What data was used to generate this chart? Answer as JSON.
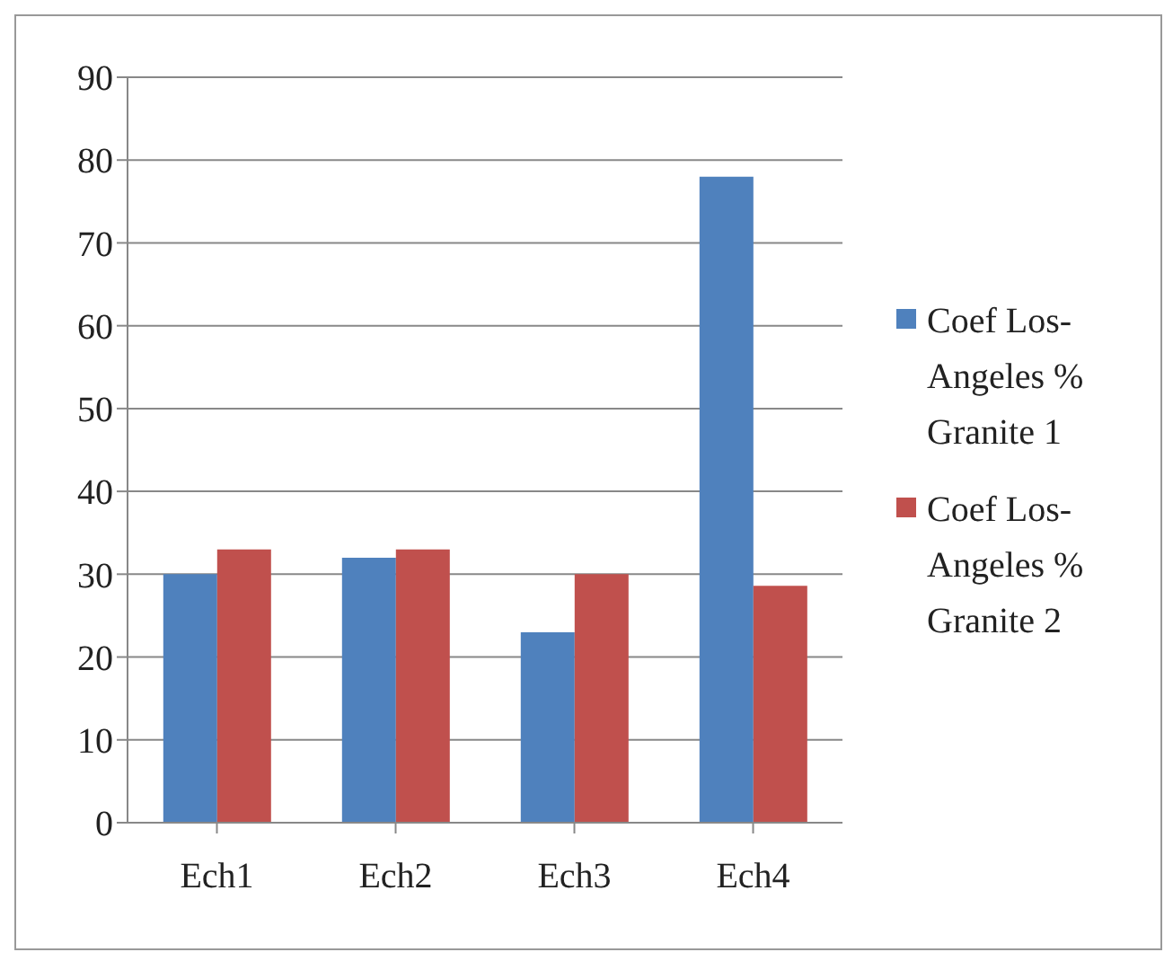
{
  "chart_data": {
    "type": "bar",
    "categories": [
      "Ech1",
      "Ech2",
      "Ech3",
      "Ech4"
    ],
    "series": [
      {
        "name": "Coef Los-Angeles % Granite 1",
        "color": "#4f81bd",
        "values": [
          30,
          32,
          23,
          78
        ]
      },
      {
        "name": "Coef Los-Angeles % Granite 2",
        "color": "#c0504d",
        "values": [
          33,
          33,
          30,
          28.6
        ]
      }
    ],
    "ylim": [
      0,
      90
    ],
    "yticks": [
      0,
      10,
      20,
      30,
      40,
      50,
      60,
      70,
      80,
      90
    ],
    "grid": "y",
    "legend": "right"
  }
}
